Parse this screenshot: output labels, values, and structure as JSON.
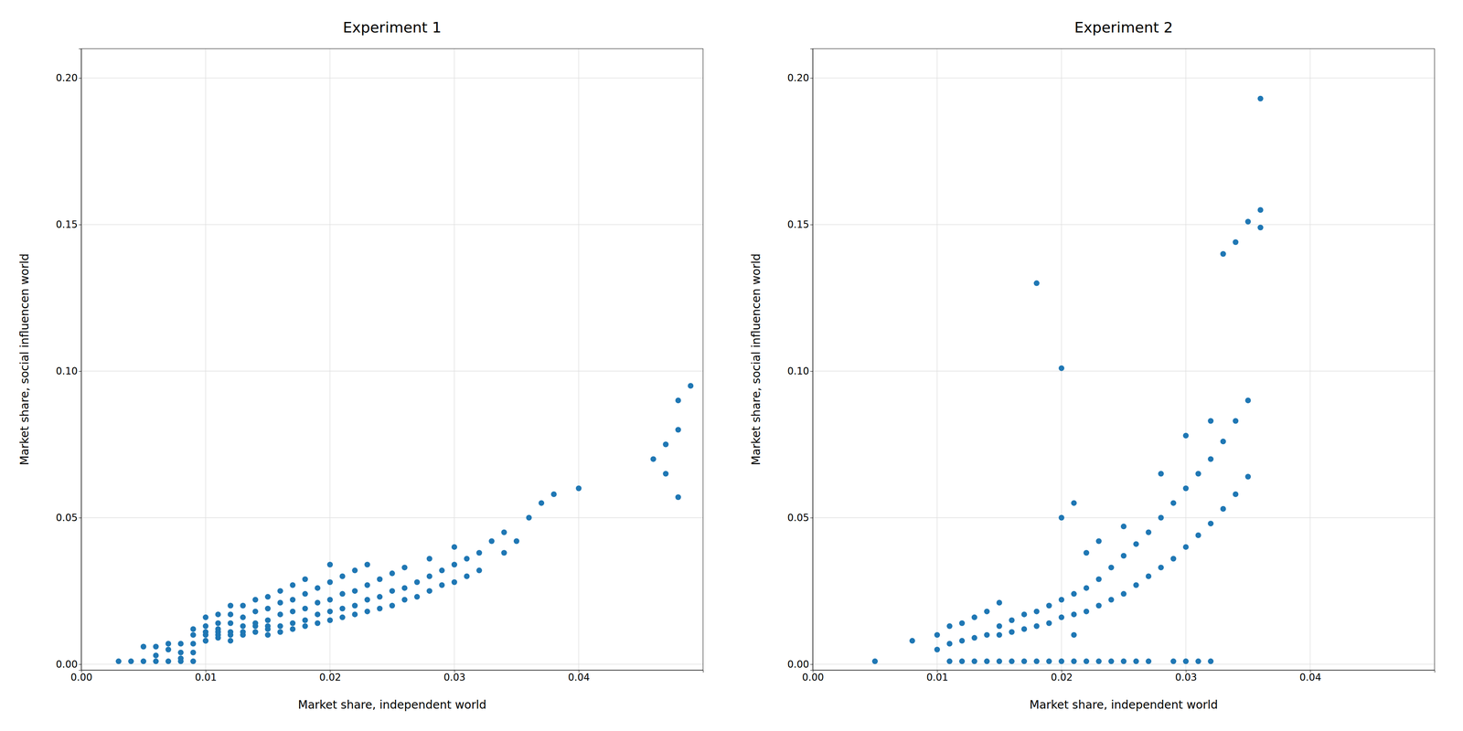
{
  "chart_data": [
    {
      "type": "scatter",
      "title": "Experiment 1",
      "x_label": "Market share, independent world",
      "y_label": "Market share, social influencen world",
      "grid": true,
      "xlim": [
        0.0,
        0.05
      ],
      "xticks": [
        {
          "value": 0.0,
          "label": "0.00"
        },
        0.01,
        0.02,
        0.03,
        0.04
      ],
      "ylim": [
        -0.002,
        0.21
      ],
      "yticks": [
        {
          "value": 0.0,
          "label": "0.00"
        },
        0.05,
        {
          "value": 0.1,
          "label": "0.10"
        },
        0.15,
        {
          "value": 0.2,
          "label": "0.20"
        }
      ],
      "x": [
        0.003,
        0.004,
        0.005,
        0.005,
        0.006,
        0.006,
        0.006,
        0.007,
        0.007,
        0.007,
        0.008,
        0.008,
        0.008,
        0.008,
        0.009,
        0.009,
        0.009,
        0.009,
        0.009,
        0.01,
        0.01,
        0.01,
        0.01,
        0.01,
        0.01,
        0.011,
        0.011,
        0.011,
        0.011,
        0.011,
        0.011,
        0.012,
        0.012,
        0.012,
        0.012,
        0.012,
        0.012,
        0.013,
        0.013,
        0.013,
        0.013,
        0.013,
        0.014,
        0.014,
        0.014,
        0.014,
        0.014,
        0.015,
        0.015,
        0.015,
        0.015,
        0.015,
        0.015,
        0.016,
        0.016,
        0.016,
        0.016,
        0.016,
        0.017,
        0.017,
        0.017,
        0.017,
        0.017,
        0.018,
        0.018,
        0.018,
        0.018,
        0.018,
        0.019,
        0.019,
        0.019,
        0.019,
        0.02,
        0.02,
        0.02,
        0.02,
        0.02,
        0.021,
        0.021,
        0.021,
        0.021,
        0.022,
        0.022,
        0.022,
        0.022,
        0.023,
        0.023,
        0.023,
        0.023,
        0.024,
        0.024,
        0.024,
        0.025,
        0.025,
        0.025,
        0.026,
        0.026,
        0.026,
        0.027,
        0.027,
        0.028,
        0.028,
        0.028,
        0.029,
        0.029,
        0.03,
        0.03,
        0.03,
        0.031,
        0.031,
        0.032,
        0.032,
        0.033,
        0.034,
        0.034,
        0.035,
        0.036,
        0.037,
        0.038,
        0.04,
        0.046,
        0.047,
        0.047,
        0.048,
        0.048,
        0.048,
        0.049
      ],
      "values": [
        0.001,
        0.001,
        0.006,
        0.001,
        0.001,
        0.003,
        0.006,
        0.001,
        0.005,
        0.007,
        0.002,
        0.004,
        0.007,
        0.001,
        0.001,
        0.004,
        0.007,
        0.01,
        0.012,
        0.008,
        0.01,
        0.013,
        0.016,
        0.008,
        0.011,
        0.009,
        0.011,
        0.014,
        0.017,
        0.01,
        0.012,
        0.008,
        0.011,
        0.014,
        0.017,
        0.02,
        0.01,
        0.01,
        0.013,
        0.016,
        0.02,
        0.011,
        0.011,
        0.014,
        0.018,
        0.022,
        0.013,
        0.012,
        0.015,
        0.019,
        0.023,
        0.01,
        0.013,
        0.013,
        0.017,
        0.021,
        0.025,
        0.011,
        0.014,
        0.018,
        0.022,
        0.027,
        0.012,
        0.015,
        0.019,
        0.024,
        0.029,
        0.013,
        0.017,
        0.021,
        0.026,
        0.014,
        0.018,
        0.022,
        0.028,
        0.034,
        0.015,
        0.019,
        0.024,
        0.03,
        0.016,
        0.02,
        0.025,
        0.032,
        0.017,
        0.022,
        0.027,
        0.034,
        0.018,
        0.023,
        0.029,
        0.019,
        0.025,
        0.031,
        0.02,
        0.026,
        0.033,
        0.022,
        0.028,
        0.023,
        0.03,
        0.036,
        0.025,
        0.032,
        0.027,
        0.034,
        0.04,
        0.028,
        0.036,
        0.03,
        0.038,
        0.032,
        0.042,
        0.038,
        0.045,
        0.042,
        0.05,
        0.055,
        0.058,
        0.06,
        0.07,
        0.065,
        0.075,
        0.057,
        0.08,
        0.09,
        0.095
      ]
    },
    {
      "type": "scatter",
      "title": "Experiment 2",
      "x_label": "Market share, independent world",
      "y_label": "Market share, social influencen world",
      "grid": true,
      "xlim": [
        0.0,
        0.05
      ],
      "xticks": [
        {
          "value": 0.0,
          "label": "0.00"
        },
        0.01,
        0.02,
        0.03,
        0.04
      ],
      "ylim": [
        -0.002,
        0.21
      ],
      "yticks": [
        {
          "value": 0.0,
          "label": "0.00"
        },
        0.05,
        {
          "value": 0.1,
          "label": "0.10"
        },
        0.15,
        {
          "value": 0.2,
          "label": "0.20"
        }
      ],
      "x": [
        0.005,
        0.008,
        0.01,
        0.01,
        0.011,
        0.011,
        0.011,
        0.012,
        0.012,
        0.012,
        0.013,
        0.013,
        0.013,
        0.014,
        0.014,
        0.014,
        0.015,
        0.015,
        0.015,
        0.015,
        0.016,
        0.016,
        0.016,
        0.017,
        0.017,
        0.017,
        0.018,
        0.018,
        0.018,
        0.018,
        0.019,
        0.019,
        0.019,
        0.02,
        0.02,
        0.02,
        0.02,
        0.02,
        0.021,
        0.021,
        0.021,
        0.021,
        0.021,
        0.022,
        0.022,
        0.022,
        0.022,
        0.023,
        0.023,
        0.023,
        0.023,
        0.024,
        0.024,
        0.024,
        0.025,
        0.025,
        0.025,
        0.025,
        0.026,
        0.026,
        0.026,
        0.027,
        0.027,
        0.027,
        0.028,
        0.028,
        0.028,
        0.029,
        0.029,
        0.029,
        0.03,
        0.03,
        0.03,
        0.03,
        0.031,
        0.031,
        0.031,
        0.032,
        0.032,
        0.032,
        0.032,
        0.033,
        0.033,
        0.033,
        0.034,
        0.034,
        0.034,
        0.035,
        0.035,
        0.035,
        0.036,
        0.036,
        0.036
      ],
      "values": [
        0.001,
        0.008,
        0.005,
        0.01,
        0.007,
        0.013,
        0.001,
        0.008,
        0.014,
        0.001,
        0.009,
        0.016,
        0.001,
        0.01,
        0.018,
        0.001,
        0.01,
        0.013,
        0.021,
        0.001,
        0.011,
        0.015,
        0.001,
        0.012,
        0.017,
        0.001,
        0.013,
        0.018,
        0.001,
        0.13,
        0.014,
        0.02,
        0.001,
        0.016,
        0.022,
        0.001,
        0.05,
        0.101,
        0.017,
        0.024,
        0.001,
        0.055,
        0.01,
        0.018,
        0.026,
        0.038,
        0.001,
        0.02,
        0.029,
        0.042,
        0.001,
        0.022,
        0.033,
        0.001,
        0.024,
        0.037,
        0.047,
        0.001,
        0.027,
        0.041,
        0.001,
        0.03,
        0.045,
        0.001,
        0.033,
        0.05,
        0.065,
        0.036,
        0.055,
        0.001,
        0.04,
        0.06,
        0.001,
        0.078,
        0.044,
        0.065,
        0.001,
        0.048,
        0.07,
        0.001,
        0.083,
        0.053,
        0.076,
        0.14,
        0.058,
        0.083,
        0.144,
        0.064,
        0.09,
        0.151,
        0.149,
        0.155,
        0.193
      ]
    }
  ]
}
